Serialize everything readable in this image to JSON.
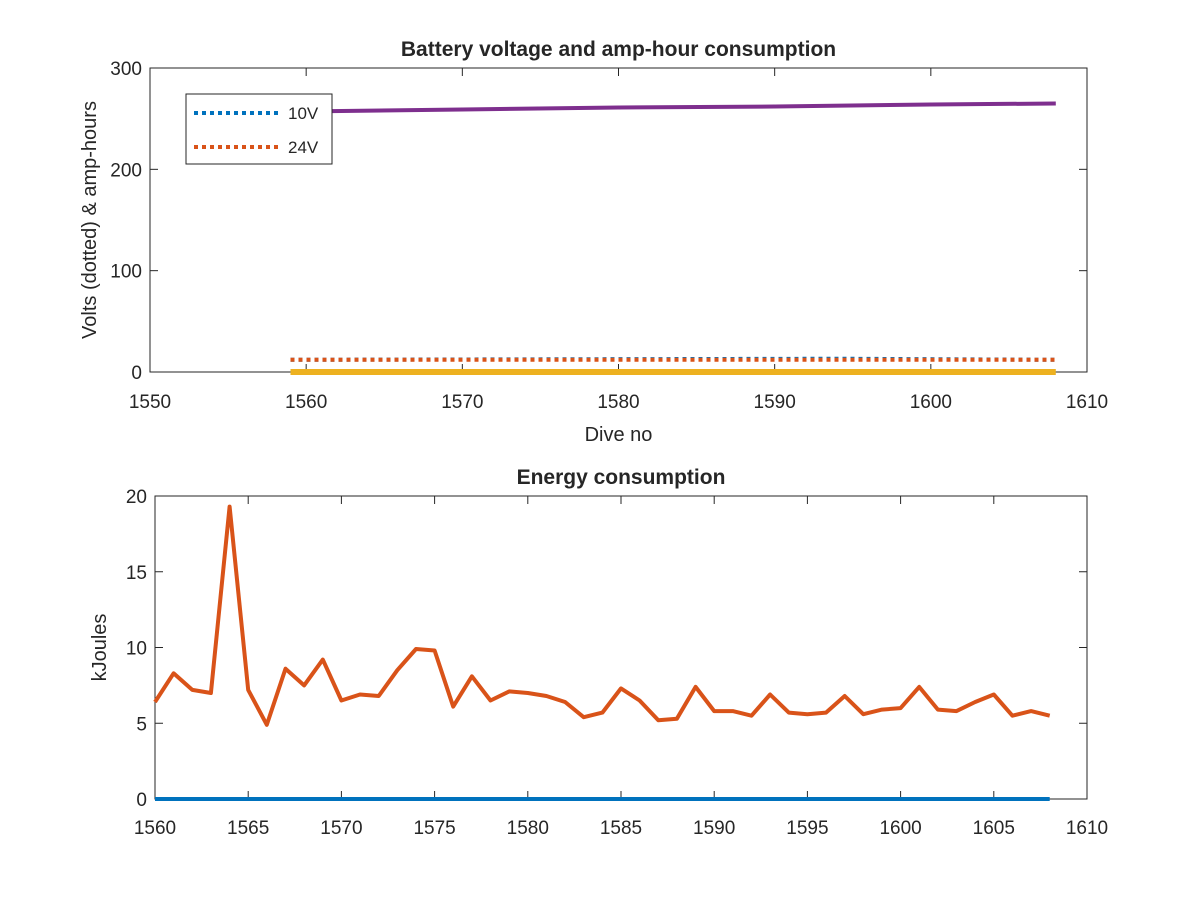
{
  "chart_data": [
    {
      "type": "line",
      "title": "Battery voltage and amp-hour consumption",
      "xlabel": "Dive no",
      "ylabel": "Volts (dotted) & amp-hours",
      "xlim": [
        1550,
        1610
      ],
      "ylim": [
        0,
        300
      ],
      "xticks": [
        "1550",
        "1560",
        "1570",
        "1580",
        "1590",
        "1600",
        "1610"
      ],
      "yticks": [
        "0",
        "100",
        "200",
        "300"
      ],
      "legend": {
        "placement": "top-left",
        "entries": [
          "10V",
          "24V"
        ]
      },
      "grid": false,
      "series": [
        {
          "name": "10V",
          "style": "dotted",
          "color": "#0072BD",
          "x": [
            1559,
            1592,
            1595,
            1608
          ],
          "y": [
            12,
            13,
            13,
            12
          ]
        },
        {
          "name": "24V",
          "style": "dotted",
          "color": "#D95319",
          "x": [
            1559,
            1608
          ],
          "y": [
            12,
            12
          ]
        },
        {
          "style": "solid",
          "color": "#EDB120",
          "x": [
            1559,
            1608
          ],
          "y": [
            0,
            0
          ]
        },
        {
          "style": "solid",
          "color": "#7E2F8E",
          "x": [
            1559,
            1570,
            1580,
            1590,
            1600,
            1608
          ],
          "y": [
            257,
            259,
            261,
            262,
            264,
            265
          ]
        }
      ]
    },
    {
      "type": "line",
      "title": "Energy consumption",
      "xlabel": "",
      "ylabel": "kJoules",
      "xlim": [
        1560,
        1610
      ],
      "ylim": [
        0,
        20
      ],
      "xticks": [
        "1560",
        "1565",
        "1570",
        "1575",
        "1580",
        "1585",
        "1590",
        "1595",
        "1600",
        "1605",
        "1610"
      ],
      "yticks": [
        "0",
        "5",
        "10",
        "15",
        "20"
      ],
      "grid": false,
      "series": [
        {
          "style": "solid",
          "color": "#0072BD",
          "x": [
            1560,
            1608
          ],
          "y": [
            0,
            0
          ]
        },
        {
          "style": "solid",
          "color": "#D95319",
          "x": [
            1560,
            1561,
            1562,
            1563,
            1564,
            1565,
            1566,
            1567,
            1568,
            1569,
            1570,
            1571,
            1572,
            1573,
            1574,
            1575,
            1576,
            1577,
            1578,
            1579,
            1580,
            1581,
            1582,
            1583,
            1584,
            1585,
            1586,
            1587,
            1588,
            1589,
            1590,
            1591,
            1592,
            1593,
            1594,
            1595,
            1596,
            1597,
            1598,
            1599,
            1600,
            1601,
            1602,
            1603,
            1604,
            1605,
            1606,
            1607,
            1608
          ],
          "y": [
            6.4,
            8.3,
            7.2,
            7.0,
            19.3,
            7.2,
            4.9,
            8.6,
            7.5,
            9.2,
            6.5,
            6.9,
            6.8,
            8.5,
            9.9,
            9.8,
            6.1,
            8.1,
            6.5,
            7.1,
            7.0,
            6.8,
            6.4,
            5.4,
            5.7,
            7.3,
            6.5,
            5.2,
            5.3,
            7.4,
            5.8,
            5.8,
            5.5,
            6.9,
            5.7,
            5.6,
            5.7,
            6.8,
            5.6,
            5.9,
            6.0,
            7.4,
            5.9,
            5.8,
            6.4,
            6.9,
            5.5,
            5.8,
            5.5
          ]
        }
      ]
    }
  ]
}
